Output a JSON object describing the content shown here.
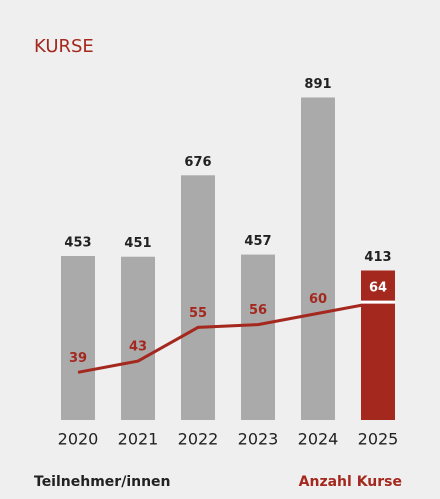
{
  "chart_data": {
    "type": "bar_line",
    "title": "KURSE",
    "categories": [
      "2020",
      "2021",
      "2022",
      "2023",
      "2024",
      "2025"
    ],
    "series": [
      {
        "name": "Teilnehmer/innen",
        "type": "bar",
        "color": "#aaaaaa",
        "colors": [
          "#aaaaaa",
          "#aaaaaa",
          "#aaaaaa",
          "#aaaaaa",
          "#aaaaaa",
          "#a4281e"
        ],
        "values": [
          453,
          451,
          676,
          457,
          891,
          413
        ]
      },
      {
        "name": "Anzahl Kurse",
        "type": "line",
        "axis": "y2",
        "color": "#a4281e",
        "values": [
          39,
          43,
          55,
          56,
          60,
          64
        ]
      }
    ],
    "ylim": [
      0,
      1000
    ],
    "y2lim": [
      22,
      151
    ]
  }
}
